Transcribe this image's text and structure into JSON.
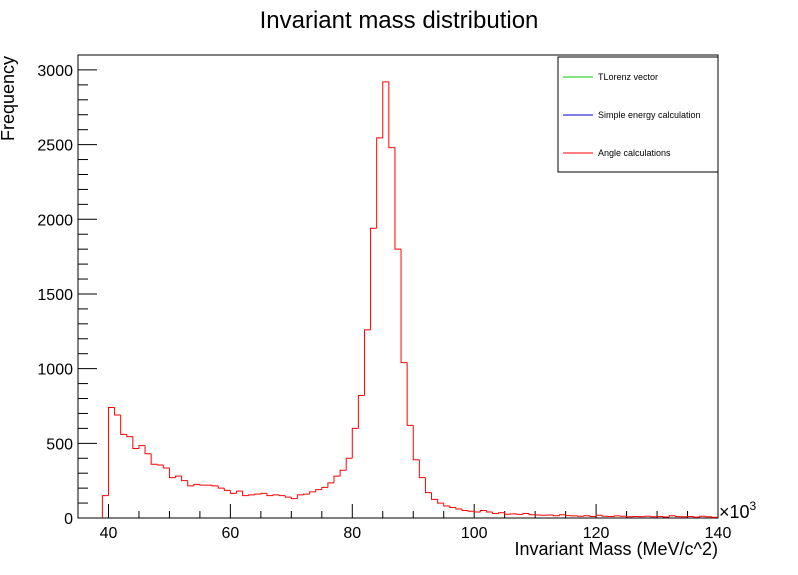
{
  "chart_data": {
    "type": "histogram",
    "title": "Invariant mass distribution",
    "xlabel": "Invariant Mass (MeV/c^2)",
    "ylabel": "Frequency",
    "x_multiplier_label": "×10",
    "x_multiplier_exp": "3",
    "xlim": [
      35,
      140
    ],
    "ylim": [
      0,
      3100
    ],
    "x_ticks": [
      40,
      60,
      80,
      100,
      120,
      140
    ],
    "y_ticks": [
      0,
      500,
      1000,
      1500,
      2000,
      2500,
      3000
    ],
    "bin_width": 1,
    "legend": {
      "position": "top-right",
      "entries": [
        {
          "label": "TLorenz vector",
          "color": "#00cc00"
        },
        {
          "label": "Simple energy calculation",
          "color": "#0000cc"
        },
        {
          "label": "Angle calculations",
          "color": "#ff0000"
        }
      ]
    },
    "series": [
      {
        "name": "Angle calculations",
        "color": "#ff0000",
        "x_start": 39,
        "values": [
          150,
          740,
          690,
          560,
          545,
          465,
          485,
          430,
          360,
          355,
          335,
          270,
          280,
          250,
          215,
          225,
          220,
          220,
          215,
          200,
          185,
          165,
          180,
          150,
          155,
          160,
          165,
          150,
          155,
          150,
          140,
          130,
          155,
          160,
          175,
          190,
          205,
          235,
          280,
          320,
          400,
          600,
          820,
          1260,
          1940,
          2545,
          2920,
          2480,
          1800,
          1040,
          620,
          390,
          270,
          170,
          125,
          100,
          80,
          70,
          60,
          50,
          45,
          40,
          50,
          40,
          30,
          35,
          25,
          28,
          24,
          30,
          22,
          20,
          18,
          20,
          15,
          22,
          16,
          14,
          12,
          15,
          10,
          18,
          12,
          10,
          14,
          12,
          8,
          10,
          9,
          12,
          8,
          10,
          7,
          15,
          9,
          8,
          10,
          6,
          12,
          8,
          5
        ]
      }
    ]
  }
}
